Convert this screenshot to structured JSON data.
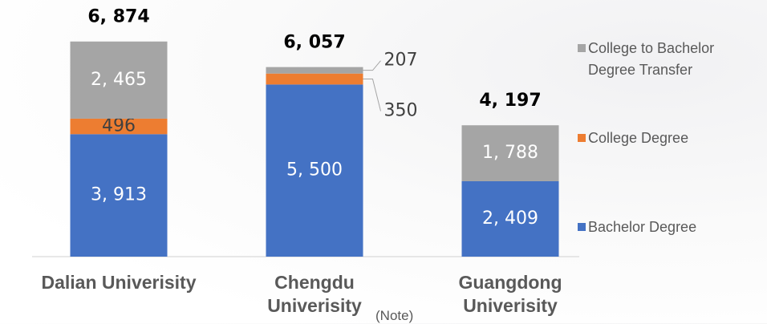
{
  "chart_data": {
    "type": "stacked_bar",
    "categories": [
      "Dalian Univerisity",
      "Chengdu Univerisity",
      "Guangdong Univerisity"
    ],
    "annotation": "(Note)",
    "series": [
      {
        "name": "Bachelor Degree",
        "color": "#4472c4",
        "values": [
          3913,
          5500,
          2409
        ],
        "value_labels": [
          "3, 913",
          "5, 500",
          "2, 409"
        ]
      },
      {
        "name": "College Degree",
        "color": "#ed7d31",
        "values": [
          496,
          350,
          null
        ],
        "value_labels": [
          "496",
          "350",
          null
        ]
      },
      {
        "name": "College to Bachelor Degree Transfer",
        "color": "#a5a5a5",
        "values": [
          2465,
          207,
          1788
        ],
        "value_labels": [
          "2, 465",
          "207",
          "1, 788"
        ]
      }
    ],
    "totals": {
      "values": [
        6874,
        6057,
        4197
      ],
      "value_labels": [
        "6, 874",
        "6, 057",
        "4, 197"
      ]
    },
    "ylim": [
      0,
      8200
    ],
    "grid": false,
    "legend": "right"
  }
}
